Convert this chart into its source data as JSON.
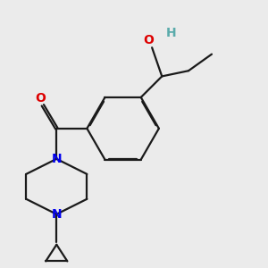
{
  "bg_color": "#ebebeb",
  "bond_color": "#1a1a1a",
  "N_color": "#0000ee",
  "O_color": "#dd0000",
  "H_color": "#5aabab",
  "lw": 1.6,
  "dbo": 0.018,
  "figsize": [
    3.0,
    3.0
  ],
  "dpi": 100,
  "xlim": [
    -1.8,
    2.2
  ],
  "ylim": [
    -2.5,
    2.3
  ]
}
